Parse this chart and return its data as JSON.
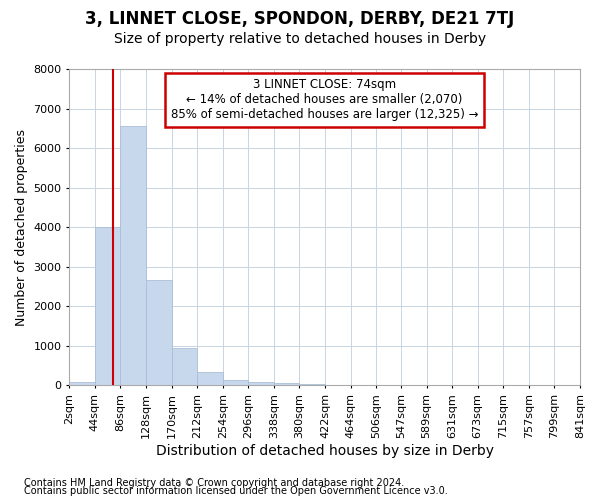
{
  "title": "3, LINNET CLOSE, SPONDON, DERBY, DE21 7TJ",
  "subtitle": "Size of property relative to detached houses in Derby",
  "xlabel": "Distribution of detached houses by size in Derby",
  "ylabel": "Number of detached properties",
  "footer_line1": "Contains HM Land Registry data © Crown copyright and database right 2024.",
  "footer_line2": "Contains public sector information licensed under the Open Government Licence v3.0.",
  "bar_color": "#c8d8ec",
  "bar_edgecolor": "#aabfd8",
  "grid_color": "#c8d4e0",
  "property_line_color": "#cc0000",
  "annotation_line1": "3 LINNET CLOSE: 74sqm",
  "annotation_line2": "← 14% of detached houses are smaller (2,070)",
  "annotation_line3": "85% of semi-detached houses are larger (12,325) →",
  "annotation_box_color": "#ffffff",
  "annotation_box_edgecolor": "#cc0000",
  "property_size": 74,
  "bins": [
    2,
    44,
    86,
    128,
    170,
    212,
    254,
    296,
    338,
    380,
    422,
    464,
    506,
    547,
    589,
    631,
    673,
    715,
    757,
    799,
    841
  ],
  "bin_labels": [
    "2sqm",
    "44sqm",
    "86sqm",
    "128sqm",
    "170sqm",
    "212sqm",
    "254sqm",
    "296sqm",
    "338sqm",
    "380sqm",
    "422sqm",
    "464sqm",
    "506sqm",
    "547sqm",
    "589sqm",
    "631sqm",
    "673sqm",
    "715sqm",
    "757sqm",
    "799sqm",
    "841sqm"
  ],
  "counts": [
    75,
    4000,
    6550,
    2650,
    950,
    330,
    120,
    70,
    50,
    20,
    5,
    0,
    0,
    0,
    0,
    0,
    0,
    0,
    0,
    0
  ],
  "ylim": [
    0,
    8000
  ],
  "yticks": [
    0,
    1000,
    2000,
    3000,
    4000,
    5000,
    6000,
    7000,
    8000
  ],
  "background_color": "#ffffff",
  "plot_background_color": "#ffffff",
  "title_fontsize": 12,
  "subtitle_fontsize": 10,
  "xlabel_fontsize": 10,
  "ylabel_fontsize": 9,
  "tick_fontsize": 8,
  "footer_fontsize": 7
}
